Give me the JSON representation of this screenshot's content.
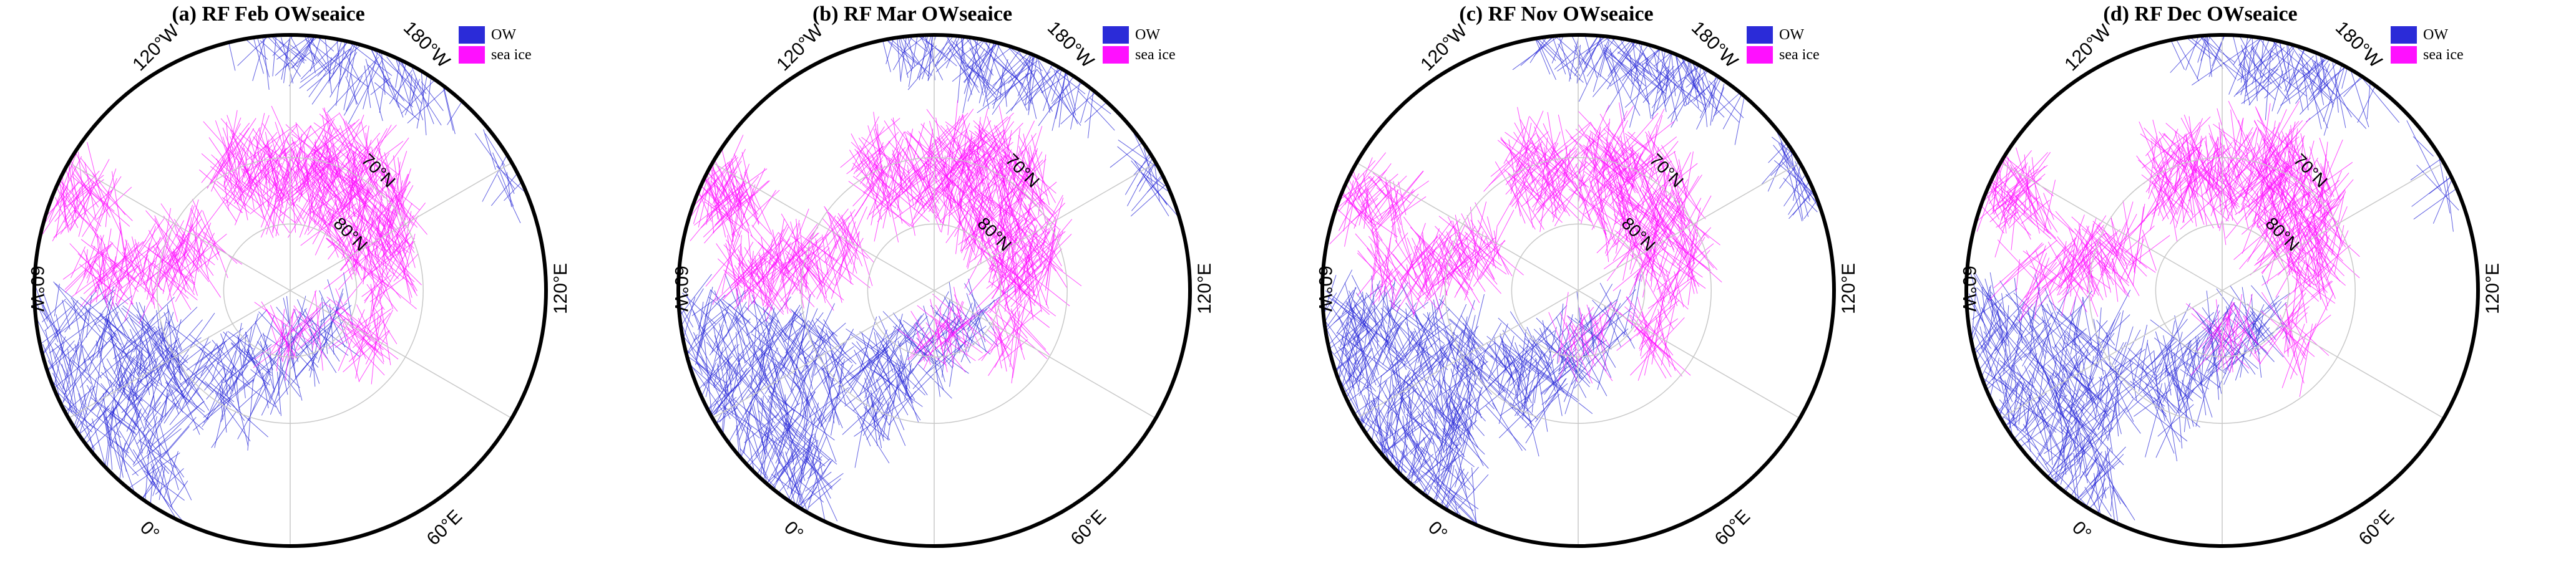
{
  "colors": {
    "ow": "#2b2bd8",
    "ice": "#ff10ff",
    "frame": "#000000",
    "grid": "#c8c8c8"
  },
  "legend": {
    "ow_label": "OW",
    "ice_label": "sea ice"
  },
  "lon_labels": {
    "lon_120w": "120°W",
    "lon_180w": "180°W",
    "lon_60w": "60°W",
    "lon_120e": "120°E",
    "lon_0": "0°",
    "lon_60e": "60°E"
  },
  "lat_labels": {
    "lat_70": "70°N",
    "lat_80": "80°N"
  },
  "panels": [
    {
      "title": "(a) RF Feb OWseaice",
      "ow_level": 0.55,
      "ice_level": 0.75
    },
    {
      "title": "(b) RF Mar OWseaice",
      "ow_level": 0.65,
      "ice_level": 0.8
    },
    {
      "title": "(c) RF Nov OWseaice",
      "ow_level": 0.7,
      "ice_level": 0.65
    },
    {
      "title": "(d) RF Dec OWseaice",
      "ow_level": 0.6,
      "ice_level": 0.7
    }
  ]
}
